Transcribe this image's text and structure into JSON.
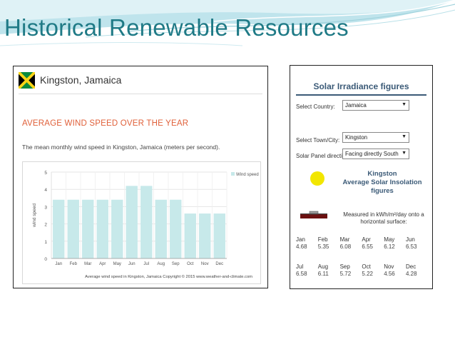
{
  "slide": {
    "title": "Historical Renewable Resources"
  },
  "left_panel": {
    "location": "Kingston, Jamaica",
    "section_title": "AVERAGE WIND SPEED OVER THE YEAR",
    "description": "The mean monthly wind speed in Kingston, Jamaica (meters per second).",
    "colors": {
      "bar": "#c7e9ea",
      "title": "#e0603a",
      "legend": "#c7e9ea"
    }
  },
  "chart_data": {
    "type": "bar",
    "categories": [
      "Jan",
      "Feb",
      "Mar",
      "Apr",
      "May",
      "Jun",
      "Jul",
      "Aug",
      "Sep",
      "Oct",
      "Nov",
      "Dec"
    ],
    "series": [
      {
        "name": "Wind speed",
        "values": [
          3.4,
          3.4,
          3.4,
          3.4,
          3.4,
          4.2,
          4.2,
          3.4,
          3.4,
          2.6,
          2.6,
          2.6
        ]
      }
    ],
    "ylabel": "wind speed",
    "ylim": [
      0,
      5
    ],
    "yticks": [
      "0",
      "1",
      "2",
      "3",
      "4",
      "5"
    ],
    "caption": "Average wind speed in Kingston, Jamaica   Copyright © 2015 www.weather-and-climate.com",
    "grid": true,
    "legend_position": "top-right"
  },
  "right_panel": {
    "title": "Solar Irradiance figures",
    "country_label": "Select Country:",
    "country_value": "Jamaica",
    "town_label": "Select Town/City:",
    "town_value": "Kingston",
    "direction_label": "Solar Panel direction:",
    "direction_value": "Facing directly South",
    "insolation_title_1": "Kingston",
    "insolation_title_2": "Average Solar Insolation",
    "insolation_title_3": "figures",
    "measured_text": "Measured in kWh/m²/day onto a horizontal surface:",
    "months_1": [
      "Jan",
      "Feb",
      "Mar",
      "Apr",
      "May",
      "Jun"
    ],
    "values_1": [
      "4.68",
      "5.35",
      "6.08",
      "6.55",
      "6.12",
      "6.53"
    ],
    "months_2": [
      "Jul",
      "Aug",
      "Sep",
      "Oct",
      "Nov",
      "Dec"
    ],
    "values_2": [
      "6.58",
      "6.11",
      "5.72",
      "5.22",
      "4.56",
      "4.28"
    ],
    "colors": {
      "heading": "#3b5a77",
      "sun": "#f2e600"
    },
    "icons": [
      "sun-icon",
      "solar-panel-icon"
    ]
  }
}
